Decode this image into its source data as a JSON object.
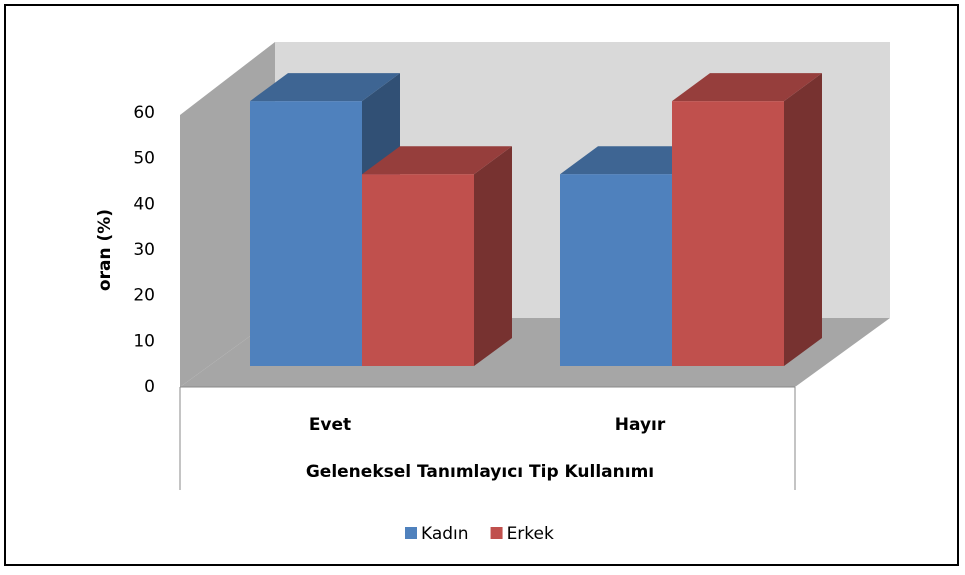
{
  "chart_data": {
    "type": "bar3d",
    "x_label": "Geleneksel Tanımlayıcı Tip Kullanımı",
    "y_label": "oran (%)",
    "categories": [
      "Evet",
      "Hayır"
    ],
    "series": [
      {
        "name": "Kadın",
        "color": "#4f81bd",
        "values": [
          58,
          42
        ]
      },
      {
        "name": "Erkek",
        "color": "#c0504d",
        "values": [
          42,
          58
        ]
      }
    ],
    "ylim": [
      0,
      60
    ],
    "yticks": [
      0,
      10,
      20,
      30,
      40,
      50,
      60
    ],
    "legend": "bottom"
  }
}
